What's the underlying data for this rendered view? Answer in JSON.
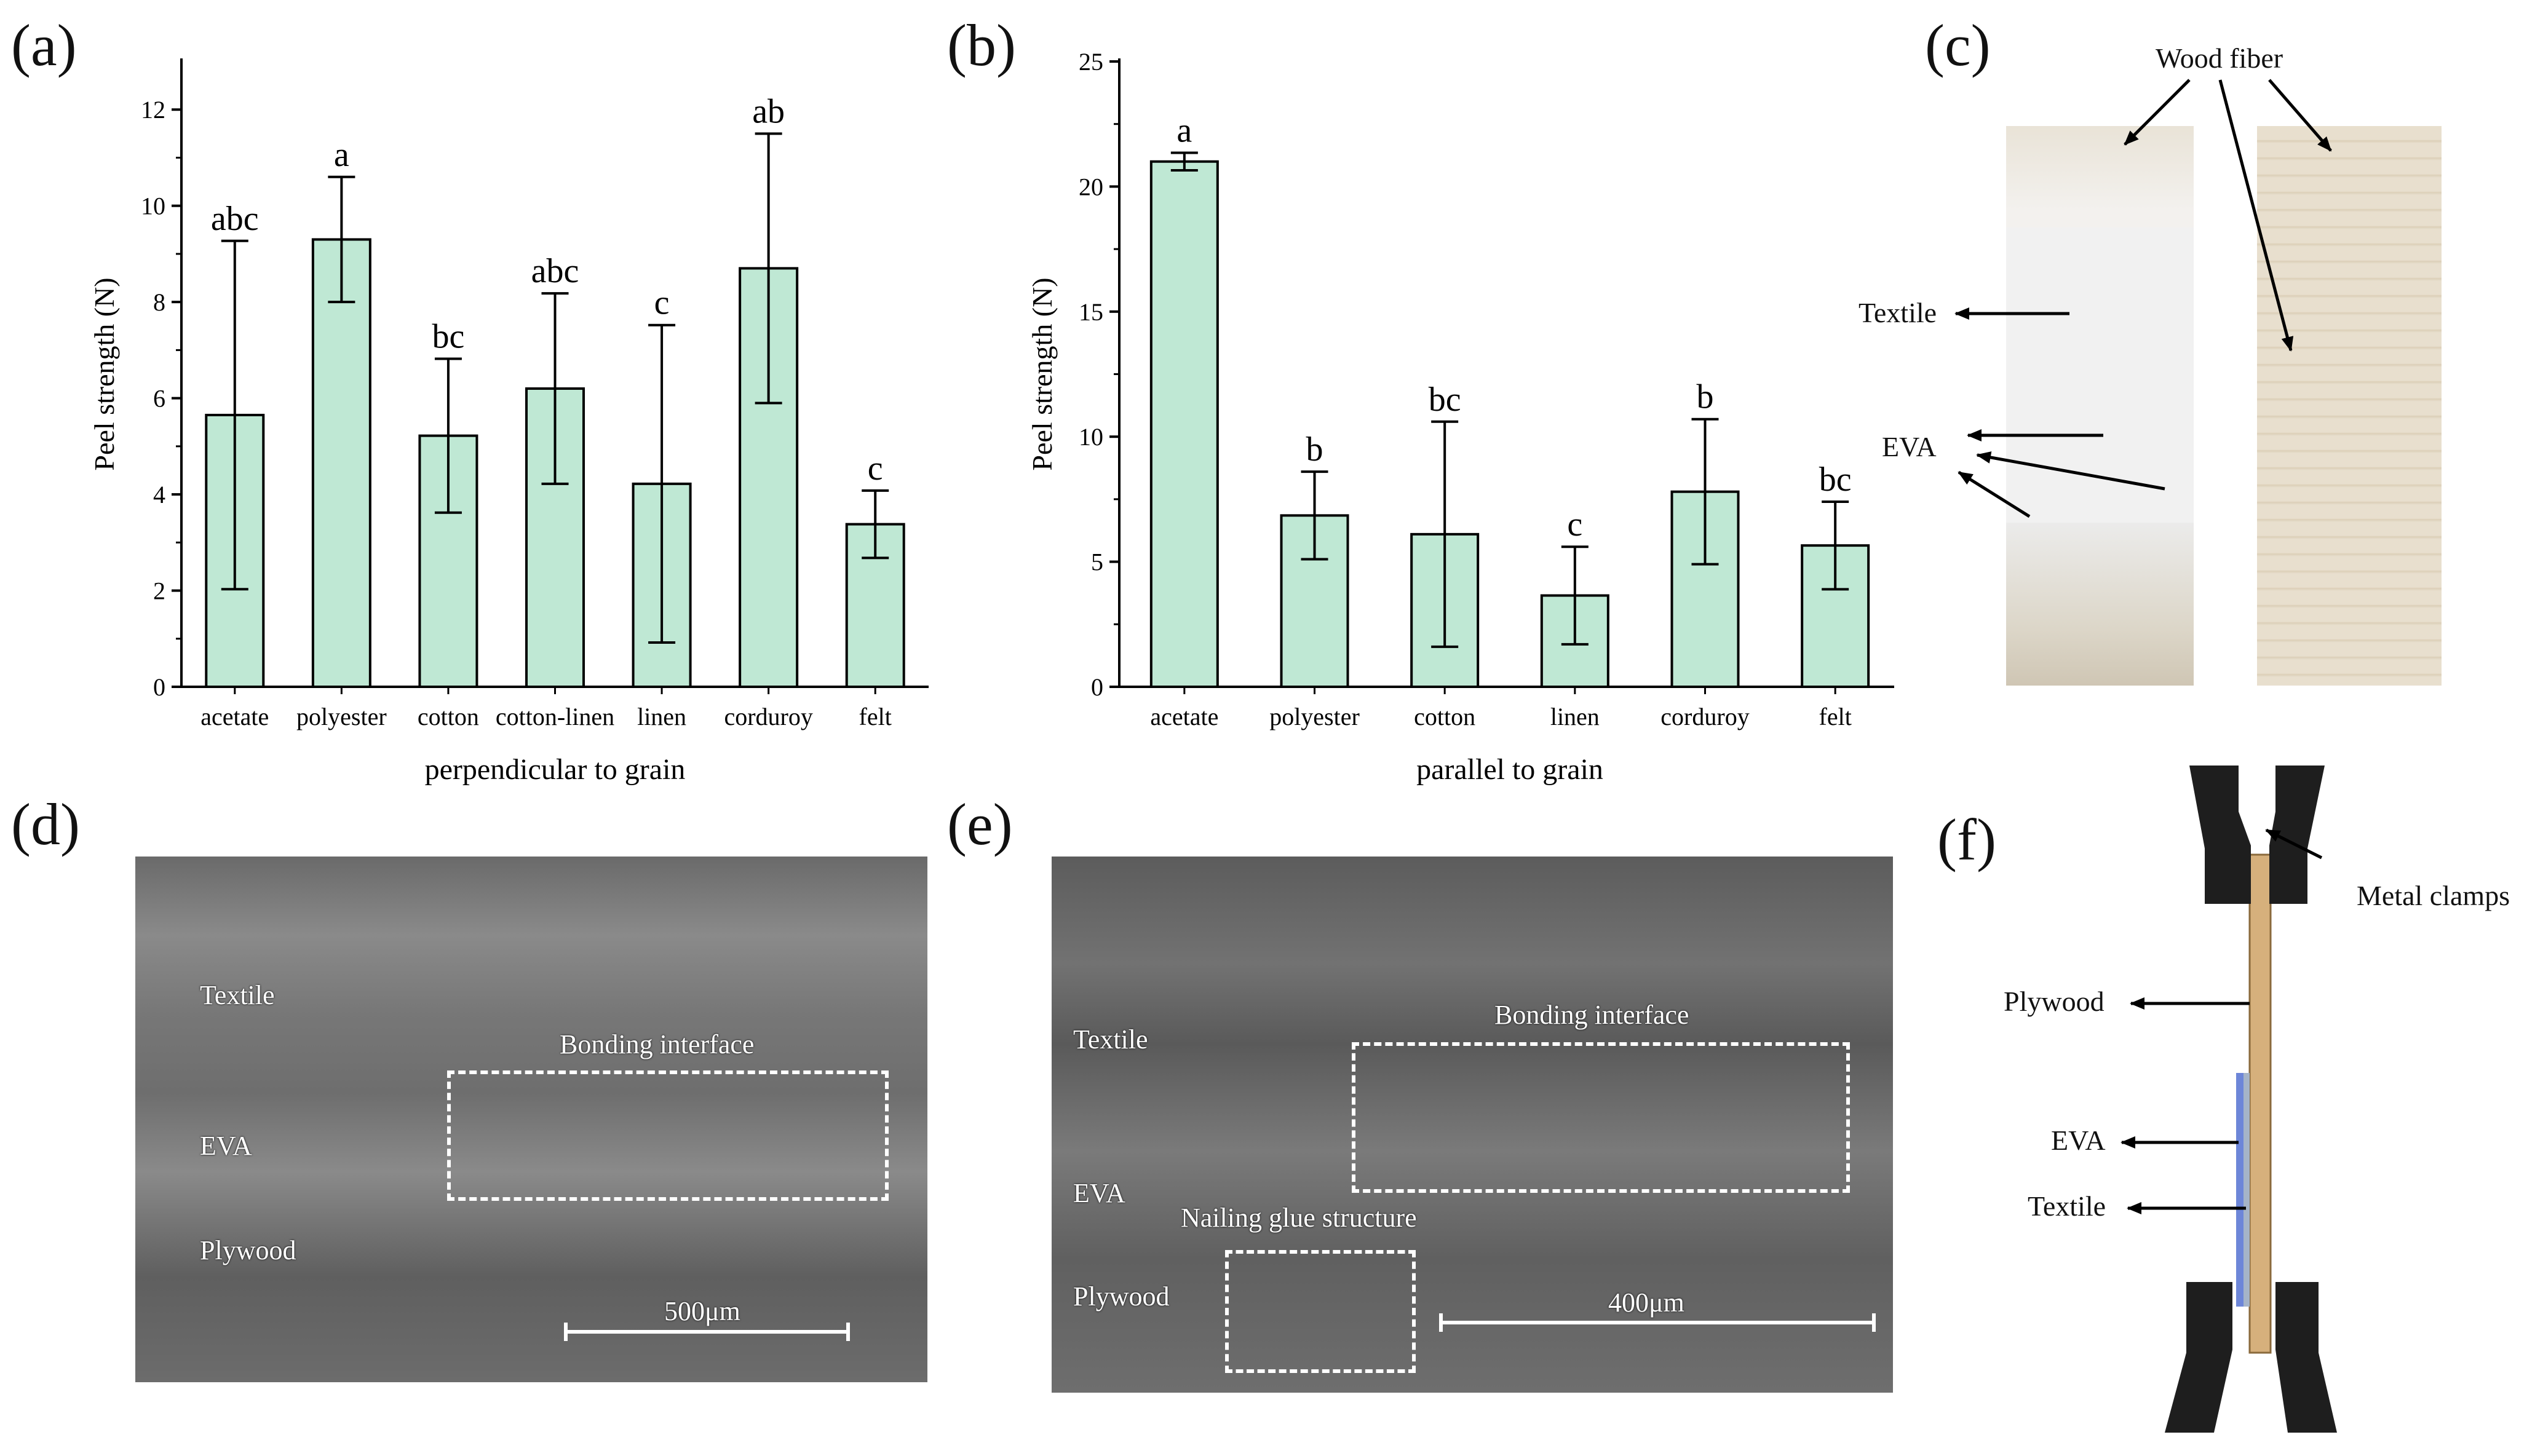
{
  "panels": {
    "a": "(a)",
    "b": "(b)",
    "c": "(c)",
    "d": "(d)",
    "e": "(e)",
    "f": "(f)"
  },
  "chart_data": [
    {
      "type": "bar",
      "categories": [
        "acetate",
        "polyester",
        "cotton",
        "cotton-linen",
        "linen",
        "corduroy",
        "felt"
      ],
      "values": [
        5.65,
        9.3,
        5.22,
        6.2,
        4.22,
        8.7,
        3.38
      ],
      "errors": [
        3.62,
        1.3,
        1.6,
        1.98,
        3.3,
        2.8,
        0.7
      ],
      "letters": [
        "abc",
        "a",
        "bc",
        "abc",
        "c",
        "ab",
        "c"
      ],
      "xlabel": "perpendicular to grain",
      "ylabel": "Peel strength (N)",
      "ylim": [
        0,
        13
      ],
      "yticks": [
        0,
        2,
        4,
        6,
        8,
        10,
        12
      ],
      "bar_color": "#bfe8d4"
    },
    {
      "type": "bar",
      "categories": [
        "acetate",
        "polyester",
        "cotton",
        "linen",
        "corduroy",
        "felt"
      ],
      "values": [
        21.0,
        6.85,
        6.1,
        3.65,
        7.8,
        5.65
      ],
      "errors": [
        0.35,
        1.75,
        4.5,
        1.95,
        2.9,
        1.75
      ],
      "letters": [
        "a",
        "b",
        "bc",
        "c",
        "b",
        "bc"
      ],
      "xlabel": "parallel to grain",
      "ylabel": "Peel strength (N)",
      "ylim": [
        0,
        25
      ],
      "yticks": [
        0,
        5,
        10,
        15,
        20,
        25
      ],
      "bar_color": "#bfe8d4"
    }
  ],
  "panel_c": {
    "wood_fiber": "Wood fiber",
    "textile": "Textile",
    "eva": "EVA"
  },
  "panel_d": {
    "textile": "Textile",
    "bonding": "Bonding interface",
    "eva": "EVA",
    "plywood": "Plywood",
    "scale": "500μm"
  },
  "panel_e": {
    "textile": "Textile",
    "bonding": "Bonding interface",
    "eva": "EVA",
    "nailing": "Nailing glue structure",
    "plywood": "Plywood",
    "scale": "400μm"
  },
  "panel_f": {
    "clamps": "Metal clamps",
    "plywood": "Plywood",
    "eva": "EVA",
    "textile": "Textile"
  },
  "colors": {
    "bar": "#bfe8d4",
    "axis": "#000000",
    "wood": "#d9b98a",
    "clamp": "#1e1e1e"
  }
}
